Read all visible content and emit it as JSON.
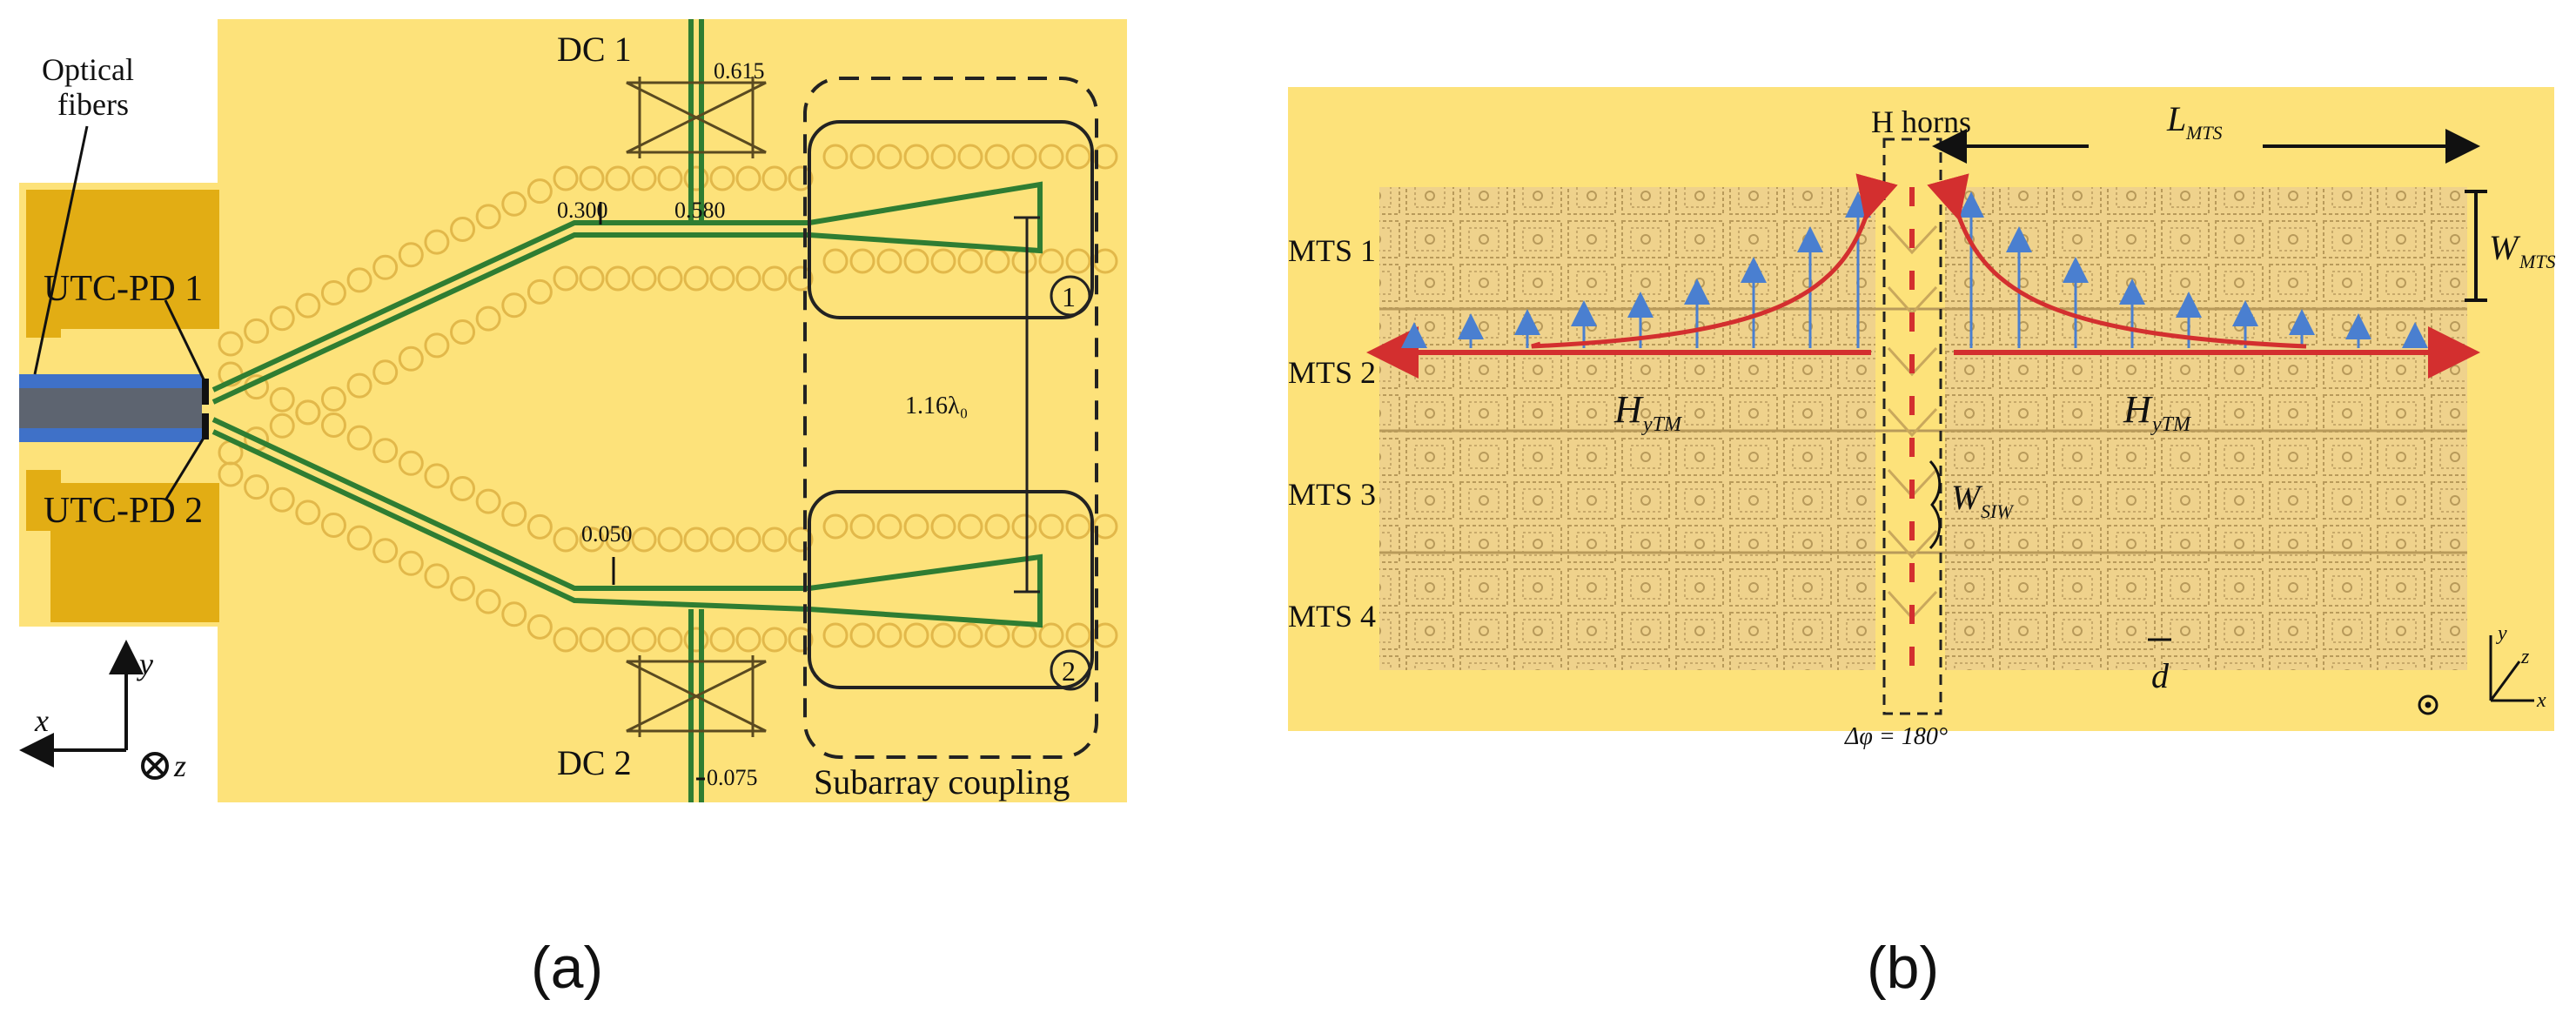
{
  "figure": {
    "panel_a": {
      "caption": "(a)",
      "labels": {
        "optical_fibers_1": "Optical",
        "optical_fibers_2": "fibers",
        "utc_pd_1": "UTC-PD 1",
        "utc_pd_2": "UTC-PD 2",
        "dc1": "DC 1",
        "dc2": "DC 2",
        "dim_0615": "0.615",
        "dim_0300": "0.300",
        "dim_0580": "0.580",
        "dim_0050": "0.050",
        "dim_0075": "0.075",
        "dim_116": "1.16λ₀",
        "port1": "1",
        "port2": "2",
        "subarray": "Subarray coupling",
        "axis_x": "x",
        "axis_y": "y",
        "axis_z": "z"
      },
      "colors": {
        "background": "#fde27a",
        "metal": "#e2ad14",
        "trace": "#2f7d32",
        "fiber_core": "#5d6470",
        "fiber_clad": "#3f71c8",
        "via": "#e2b84a"
      }
    },
    "panel_b": {
      "caption": "(b)",
      "labels": {
        "h_horns": "H horns",
        "l_mts": "L",
        "l_mts_sub": "MTS",
        "w_mts": "W",
        "w_mts_sub": "MTS",
        "mts1": "MTS 1",
        "mts2": "MTS 2",
        "mts3": "MTS 3",
        "mts4": "MTS 4",
        "h_ytm_left": "H",
        "h_ytm_left_sub": "yTM",
        "h_ytm_right": "H",
        "h_ytm_right_sub": "yTM",
        "w_siw": "W",
        "w_siw_sub": "SIW",
        "d": "d",
        "delta_phi": "Δφ = 180°",
        "axis_y": "y",
        "axis_x": "x",
        "axis_z": "z"
      },
      "colors": {
        "background": "#fde27a",
        "cell": "#ddc38a",
        "decay_curve": "#d32f2f",
        "arrow": "#4a7fd0",
        "baseline": "#d32f2f"
      }
    }
  }
}
